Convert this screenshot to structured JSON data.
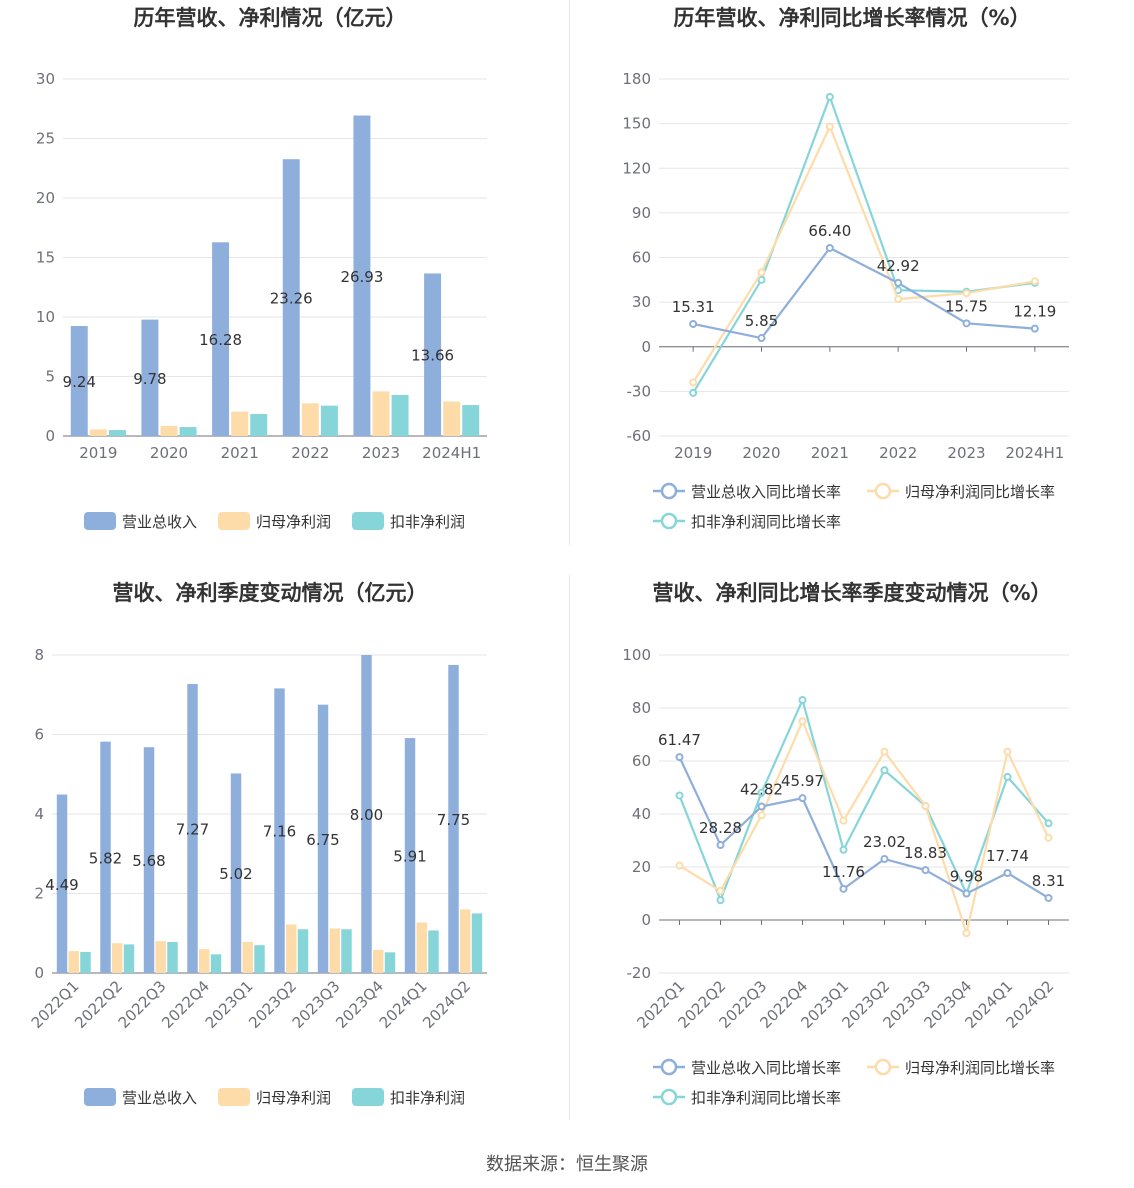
{
  "source_text": "数据来源：恒生聚源",
  "chart_data": [
    {
      "type": "bar",
      "title": "历年营收、净利情况（亿元）",
      "categories": [
        "2019",
        "2020",
        "2021",
        "2022",
        "2023",
        "2024H1"
      ],
      "ylim": [
        0,
        30
      ],
      "yticks": [
        0,
        5,
        10,
        15,
        20,
        25,
        30
      ],
      "series": [
        {
          "name": "营业总收入",
          "color": "#8eaedc",
          "values": [
            9.24,
            9.78,
            16.28,
            23.26,
            26.93,
            13.66
          ],
          "labels": [
            "9.24",
            "9.78",
            "16.28",
            "23.26",
            "26.93",
            "13.66"
          ]
        },
        {
          "name": "归母净利润",
          "color": "#fddcaa",
          "values": [
            0.55,
            0.85,
            2.05,
            2.75,
            3.75,
            2.9
          ]
        },
        {
          "name": "扣非净利润",
          "color": "#86d5d9",
          "values": [
            0.5,
            0.75,
            1.85,
            2.55,
            3.45,
            2.6
          ]
        }
      ],
      "grid": true,
      "legend_position": "bottom"
    },
    {
      "type": "line",
      "title": "历年营收、净利同比增长率情况（%）",
      "categories": [
        "2019",
        "2020",
        "2021",
        "2022",
        "2023",
        "2024H1"
      ],
      "ylim": [
        -60,
        180
      ],
      "yticks": [
        -60,
        -30,
        0,
        30,
        60,
        90,
        120,
        150,
        180
      ],
      "series": [
        {
          "name": "营业总收入同比增长率",
          "color": "#8eaedc",
          "values": [
            15.31,
            5.85,
            66.4,
            42.92,
            15.75,
            12.19
          ],
          "labels": [
            "15.31",
            "5.85",
            "66.40",
            "42.92",
            "15.75",
            "12.19"
          ]
        },
        {
          "name": "归母净利润同比增长率",
          "color": "#fddcaa",
          "values": [
            -24,
            50,
            148,
            32,
            36,
            44
          ]
        },
        {
          "name": "扣非净利润同比增长率",
          "color": "#86d5d9",
          "values": [
            -31,
            45,
            168,
            38,
            37,
            43
          ]
        }
      ],
      "grid": true,
      "legend_position": "bottom"
    },
    {
      "type": "bar",
      "title": "营收、净利季度变动情况（亿元）",
      "categories": [
        "2022Q1",
        "2022Q2",
        "2022Q3",
        "2022Q4",
        "2023Q1",
        "2023Q2",
        "2023Q3",
        "2023Q4",
        "2024Q1",
        "2024Q2"
      ],
      "ylim": [
        0,
        8
      ],
      "yticks": [
        0,
        2,
        4,
        6,
        8
      ],
      "series": [
        {
          "name": "营业总收入",
          "color": "#8eaedc",
          "values": [
            4.49,
            5.82,
            5.68,
            7.27,
            5.02,
            7.16,
            6.75,
            8.0,
            5.91,
            7.75
          ],
          "labels": [
            "4.49",
            "5.82",
            "5.68",
            "7.27",
            "5.02",
            "7.16",
            "6.75",
            "8.00",
            "5.91",
            "7.75"
          ]
        },
        {
          "name": "归母净利润",
          "color": "#fddcaa",
          "values": [
            0.55,
            0.75,
            0.8,
            0.6,
            0.78,
            1.22,
            1.12,
            0.58,
            1.27,
            1.6
          ]
        },
        {
          "name": "扣非净利润",
          "color": "#86d5d9",
          "values": [
            0.53,
            0.72,
            0.78,
            0.47,
            0.7,
            1.1,
            1.1,
            0.52,
            1.07,
            1.5
          ]
        }
      ],
      "grid": true,
      "legend_position": "bottom"
    },
    {
      "type": "line",
      "title": "营收、净利同比增长率季度变动情况（%）",
      "categories": [
        "2022Q1",
        "2022Q2",
        "2022Q3",
        "2022Q4",
        "2023Q1",
        "2023Q2",
        "2023Q3",
        "2023Q4",
        "2024Q1",
        "2024Q2"
      ],
      "ylim": [
        -20,
        100
      ],
      "yticks": [
        -20,
        0,
        20,
        40,
        60,
        80,
        100
      ],
      "series": [
        {
          "name": "营业总收入同比增长率",
          "color": "#8eaedc",
          "values": [
            61.47,
            28.28,
            42.82,
            45.97,
            11.76,
            23.02,
            18.83,
            9.98,
            17.74,
            8.31
          ],
          "labels": [
            "61.47",
            "28.28",
            "42.82",
            "45.97",
            "11.76",
            "23.02",
            "18.83",
            "9.98",
            "17.74",
            "8.31"
          ]
        },
        {
          "name": "归母净利润同比增长率",
          "color": "#fddcaa",
          "values": [
            20.5,
            11,
            39.5,
            75,
            37.5,
            63.5,
            43,
            -5,
            63.5,
            31
          ]
        },
        {
          "name": "扣非净利润同比增长率",
          "color": "#86d5d9",
          "values": [
            47,
            7.5,
            48,
            83,
            26.5,
            56.5,
            43,
            10,
            54,
            36.5
          ]
        }
      ],
      "grid": true,
      "legend_position": "bottom"
    }
  ]
}
